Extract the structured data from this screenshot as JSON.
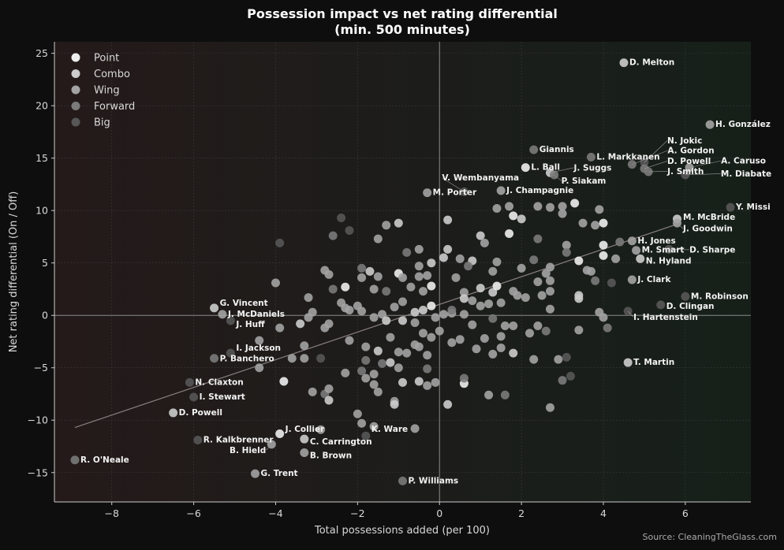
{
  "chart_data": {
    "type": "scatter",
    "title_line1": "Possession impact vs net rating differential",
    "title_line2": "(min. 500 minutes)",
    "xlabel": "Total possessions added (per 100)",
    "ylabel": "Net rating differential (On / Off)",
    "xlim": [
      -9.4,
      7.6
    ],
    "ylim": [
      -17.8,
      26.1
    ],
    "xticks": [
      -8,
      -6,
      -4,
      -2,
      0,
      2,
      4,
      6
    ],
    "yticks": [
      -15,
      -10,
      -5,
      0,
      5,
      10,
      15,
      20,
      25
    ],
    "grid": true,
    "legend_position": "top-left",
    "groups": [
      {
        "name": "Point",
        "color": "#eeeeee"
      },
      {
        "name": "Combo",
        "color": "#cccccc"
      },
      {
        "name": "Wing",
        "color": "#a3a3a3"
      },
      {
        "name": "Forward",
        "color": "#7a7a7a"
      },
      {
        "name": "Big",
        "color": "#575757"
      }
    ],
    "trendline": {
      "x": [
        -8.9,
        5.8
      ],
      "y": [
        -10.7,
        8.7
      ],
      "color": "#8a8080"
    },
    "labeled_points": [
      {
        "name": "D. Melton",
        "x": 4.5,
        "y": 24.1,
        "group": 1
      },
      {
        "name": "H. González",
        "x": 6.6,
        "y": 18.2,
        "group": 2
      },
      {
        "name": "Giannis",
        "x": 2.3,
        "y": 15.8,
        "group": 3
      },
      {
        "name": "L. Markkanen",
        "x": 3.7,
        "y": 15.1,
        "group": 3
      },
      {
        "name": "N. Jokic",
        "x": 5.0,
        "y": 14.6,
        "group": 4
      },
      {
        "name": "A. Gordon",
        "x": 4.7,
        "y": 14.4,
        "group": 3
      },
      {
        "name": "D. Powell",
        "x": 5.0,
        "y": 14.0,
        "group": 3
      },
      {
        "name": "A. Caruso",
        "x": 6.1,
        "y": 14.1,
        "group": 2
      },
      {
        "name": "J. Smith",
        "x": 5.1,
        "y": 13.7,
        "group": 3
      },
      {
        "name": "M. Diabate",
        "x": 6.0,
        "y": 13.4,
        "group": 4
      },
      {
        "name": "L. Ball",
        "x": 2.1,
        "y": 14.1,
        "group": 0
      },
      {
        "name": "J. Suggs",
        "x": 2.7,
        "y": 13.6,
        "group": 1
      },
      {
        "name": "P. Siakam",
        "x": 2.8,
        "y": 13.4,
        "group": 3
      },
      {
        "name": "J. Champagnie",
        "x": 1.5,
        "y": 11.9,
        "group": 2
      },
      {
        "name": "V. Wembanyama",
        "x": 0.6,
        "y": 11.8,
        "group": 4
      },
      {
        "name": "M. Porter",
        "x": -0.3,
        "y": 11.7,
        "group": 2
      },
      {
        "name": "Y. Missi",
        "x": 7.1,
        "y": 10.3,
        "group": 4
      },
      {
        "name": "M. McBride",
        "x": 5.8,
        "y": 9.2,
        "group": 1
      },
      {
        "name": "J. Goodwin",
        "x": 5.8,
        "y": 8.8,
        "group": 2
      },
      {
        "name": "H. Jones",
        "x": 4.7,
        "y": 7.1,
        "group": 2
      },
      {
        "name": "M. Smart",
        "x": 4.8,
        "y": 6.2,
        "group": 2
      },
      {
        "name": "D. Sharpe",
        "x": 5.6,
        "y": 6.3,
        "group": 4
      },
      {
        "name": "N. Hyland",
        "x": 4.9,
        "y": 5.4,
        "group": 1
      },
      {
        "name": "J. Clark",
        "x": 4.7,
        "y": 3.4,
        "group": 2
      },
      {
        "name": "M. Robinson",
        "x": 6.0,
        "y": 1.8,
        "group": 4
      },
      {
        "name": "D. Clingan",
        "x": 5.4,
        "y": 1.0,
        "group": 4
      },
      {
        "name": "I. Hartenstein",
        "x": 4.6,
        "y": 0.4,
        "group": 4
      },
      {
        "name": "T. Martin",
        "x": 4.6,
        "y": -4.5,
        "group": 1
      },
      {
        "name": "G. Vincent",
        "x": -5.5,
        "y": 0.7,
        "group": 1
      },
      {
        "name": "J. McDaniels",
        "x": -5.3,
        "y": 0.1,
        "group": 2
      },
      {
        "name": "J. Huff",
        "x": -5.1,
        "y": -0.5,
        "group": 4
      },
      {
        "name": "I. Jackson",
        "x": -5.1,
        "y": -3.6,
        "group": 4
      },
      {
        "name": "P. Banchero",
        "x": -5.5,
        "y": -4.1,
        "group": 3
      },
      {
        "name": "N. Claxton",
        "x": -6.1,
        "y": -6.4,
        "group": 4
      },
      {
        "name": "I. Stewart",
        "x": -6.0,
        "y": -7.8,
        "group": 4
      },
      {
        "name": "D. Powell",
        "x": -6.5,
        "y": -9.3,
        "group": 1
      },
      {
        "name": "R. Kalkbrenner",
        "x": -5.9,
        "y": -11.9,
        "group": 4
      },
      {
        "name": "R. O'Neale",
        "x": -8.9,
        "y": -13.8,
        "group": 3
      },
      {
        "name": "G. Trent",
        "x": -4.5,
        "y": -15.1,
        "group": 2
      },
      {
        "name": "J. Collier",
        "x": -3.9,
        "y": -11.3,
        "group": 0
      },
      {
        "name": "B. Hield",
        "x": -4.1,
        "y": -12.3,
        "group": 2
      },
      {
        "name": "C. Carrington",
        "x": -3.3,
        "y": -11.8,
        "group": 1
      },
      {
        "name": "B. Brown",
        "x": -3.3,
        "y": -13.1,
        "group": 2
      },
      {
        "name": "K. Ware",
        "x": -1.8,
        "y": -11.5,
        "group": 4
      },
      {
        "name": "P. Williams",
        "x": -0.9,
        "y": -15.8,
        "group": 3
      }
    ],
    "other_points": [
      [
        -3.9,
        6.9,
        4
      ],
      [
        -4.0,
        3.1,
        2
      ],
      [
        -2.4,
        9.3,
        4
      ],
      [
        -2.2,
        8.1,
        4
      ],
      [
        -2.6,
        7.6,
        3
      ],
      [
        -1.3,
        8.6,
        2
      ],
      [
        -1.0,
        8.8,
        1
      ],
      [
        -1.5,
        7.3,
        2
      ],
      [
        -0.5,
        6.3,
        2
      ],
      [
        -0.8,
        6.0,
        3
      ],
      [
        -1.9,
        4.5,
        3
      ],
      [
        -1.7,
        4.2,
        1
      ],
      [
        -2.8,
        4.3,
        2
      ],
      [
        -2.7,
        3.9,
        2
      ],
      [
        -1.5,
        3.7,
        2
      ],
      [
        -1.0,
        4.0,
        0
      ],
      [
        -0.5,
        4.7,
        2
      ],
      [
        -0.2,
        5.0,
        1
      ],
      [
        0.1,
        5.5,
        1
      ],
      [
        0.2,
        6.3,
        1
      ],
      [
        0.5,
        5.4,
        2
      ],
      [
        0.8,
        5.2,
        1
      ],
      [
        1.0,
        7.6,
        1
      ],
      [
        1.1,
        6.9,
        2
      ],
      [
        1.7,
        7.8,
        0
      ],
      [
        2.0,
        9.2,
        1
      ],
      [
        1.8,
        9.5,
        0
      ],
      [
        1.7,
        10.4,
        2
      ],
      [
        2.4,
        10.4,
        2
      ],
      [
        2.7,
        10.3,
        2
      ],
      [
        3.0,
        10.4,
        2
      ],
      [
        3.3,
        10.7,
        0
      ],
      [
        3.9,
        10.1,
        2
      ],
      [
        3.0,
        9.7,
        2
      ],
      [
        3.5,
        8.8,
        2
      ],
      [
        3.8,
        8.6,
        2
      ],
      [
        4.0,
        8.8,
        0
      ],
      [
        1.4,
        10.2,
        2
      ],
      [
        0.2,
        9.1,
        1
      ],
      [
        2.4,
        7.3,
        3
      ],
      [
        3.1,
        6.7,
        2
      ],
      [
        3.1,
        6.0,
        3
      ],
      [
        4.0,
        6.7,
        0
      ],
      [
        4.4,
        7.0,
        3
      ],
      [
        4.0,
        5.7,
        0
      ],
      [
        3.4,
        5.2,
        0
      ],
      [
        3.6,
        4.3,
        2
      ],
      [
        3.7,
        4.2,
        2
      ],
      [
        4.3,
        5.4,
        2
      ],
      [
        2.7,
        4.6,
        2
      ],
      [
        2.3,
        5.3,
        3
      ],
      [
        2.0,
        4.5,
        2
      ],
      [
        1.4,
        5.1,
        2
      ],
      [
        1.3,
        4.2,
        2
      ],
      [
        2.6,
        4.0,
        2
      ],
      [
        2.7,
        3.3,
        2
      ],
      [
        2.4,
        3.2,
        2
      ],
      [
        3.8,
        3.3,
        3
      ],
      [
        4.2,
        3.1,
        4
      ],
      [
        3.4,
        1.6,
        1
      ],
      [
        3.4,
        1.9,
        1
      ],
      [
        2.7,
        2.3,
        2
      ],
      [
        2.5,
        1.9,
        2
      ],
      [
        2.1,
        1.7,
        2
      ],
      [
        1.8,
        2.3,
        2
      ],
      [
        1.5,
        1.2,
        2
      ],
      [
        1.3,
        2.2,
        1
      ],
      [
        1.0,
        2.6,
        1
      ],
      [
        0.6,
        2.2,
        2
      ],
      [
        0.4,
        3.6,
        2
      ],
      [
        0.6,
        1.6,
        1
      ],
      [
        0.8,
        1.4,
        2
      ],
      [
        1.2,
        1.1,
        2
      ],
      [
        1.9,
        1.9,
        2
      ],
      [
        1.4,
        2.8,
        0
      ],
      [
        1.0,
        0.9,
        2
      ],
      [
        0.6,
        0.1,
        2
      ],
      [
        0.3,
        0.2,
        2
      ],
      [
        0.1,
        0.1,
        2
      ],
      [
        -0.2,
        0.9,
        0
      ],
      [
        -0.4,
        0.5,
        1
      ],
      [
        -0.6,
        0.3,
        1
      ],
      [
        -0.2,
        2.8,
        0
      ],
      [
        -0.4,
        2.3,
        2
      ],
      [
        -0.7,
        2.7,
        2
      ],
      [
        -0.9,
        3.6,
        2
      ],
      [
        -1.3,
        2.3,
        3
      ],
      [
        -1.6,
        2.5,
        2
      ],
      [
        -1.9,
        3.6,
        2
      ],
      [
        -2.3,
        2.7,
        0
      ],
      [
        -2.6,
        2.5,
        3
      ],
      [
        -2.4,
        1.2,
        2
      ],
      [
        -2.3,
        0.7,
        2
      ],
      [
        -2.0,
        0.9,
        2
      ],
      [
        -1.6,
        -0.2,
        2
      ],
      [
        -1.4,
        0.1,
        2
      ],
      [
        -1.1,
        0.8,
        2
      ],
      [
        -0.9,
        1.3,
        2
      ],
      [
        -2.7,
        -0.8,
        2
      ],
      [
        -2.8,
        -1.2,
        2
      ],
      [
        -3.2,
        1.7,
        2
      ],
      [
        -3.1,
        0.3,
        2
      ],
      [
        -3.2,
        -0.2,
        2
      ],
      [
        -3.4,
        -0.8,
        1
      ],
      [
        -3.9,
        -1.2,
        2
      ],
      [
        -3.3,
        -2.9,
        2
      ],
      [
        -3.3,
        -4.1,
        2
      ],
      [
        -3.6,
        -4.1,
        2
      ],
      [
        -3.8,
        -6.3,
        0
      ],
      [
        -4.4,
        -2.4,
        2
      ],
      [
        -4.4,
        -5.0,
        2
      ],
      [
        -2.9,
        -4.1,
        4
      ],
      [
        -3.1,
        -7.3,
        2
      ],
      [
        -2.8,
        -7.5,
        3
      ],
      [
        -2.7,
        -7.0,
        2
      ],
      [
        -2.7,
        -8.1,
        1
      ],
      [
        -2.2,
        -2.4,
        2
      ],
      [
        -2.3,
        -5.5,
        2
      ],
      [
        -1.8,
        -3.0,
        2
      ],
      [
        -1.8,
        -4.3,
        3
      ],
      [
        -1.6,
        -5.6,
        2
      ],
      [
        -1.5,
        -3.4,
        1
      ],
      [
        -1.4,
        -4.6,
        3
      ],
      [
        -1.2,
        -2.1,
        2
      ],
      [
        -1.2,
        -4.5,
        1
      ],
      [
        -1.0,
        -5.0,
        2
      ],
      [
        -0.9,
        -6.4,
        1
      ],
      [
        -1.8,
        -6.0,
        2
      ],
      [
        -1.6,
        -6.6,
        2
      ],
      [
        -1.5,
        -7.3,
        2
      ],
      [
        -1.1,
        -8.2,
        2
      ],
      [
        -1.1,
        -8.5,
        1
      ],
      [
        -0.5,
        -6.3,
        1
      ],
      [
        -0.3,
        -6.7,
        2
      ],
      [
        -0.1,
        -6.4,
        2
      ],
      [
        -0.8,
        -3.6,
        2
      ],
      [
        -0.6,
        -2.8,
        2
      ],
      [
        -0.4,
        -1.7,
        2
      ],
      [
        -0.2,
        -2.1,
        2
      ],
      [
        0.0,
        -1.5,
        2
      ],
      [
        -0.6,
        -0.7,
        2
      ],
      [
        -0.9,
        -0.5,
        1
      ],
      [
        -1.3,
        -0.5,
        1
      ],
      [
        -0.1,
        -0.2,
        2
      ],
      [
        0.3,
        -2.6,
        2
      ],
      [
        0.5,
        -2.3,
        2
      ],
      [
        0.8,
        -0.9,
        2
      ],
      [
        0.9,
        -3.2,
        2
      ],
      [
        1.1,
        -2.2,
        2
      ],
      [
        1.3,
        -3.7,
        2
      ],
      [
        1.5,
        -3.1,
        2
      ],
      [
        1.5,
        -2.0,
        2
      ],
      [
        1.6,
        -1.0,
        2
      ],
      [
        1.8,
        -3.6,
        1
      ],
      [
        1.8,
        -1.0,
        2
      ],
      [
        0.6,
        -6.5,
        0
      ],
      [
        0.6,
        -6.0,
        3
      ],
      [
        0.2,
        -8.5,
        1
      ],
      [
        1.2,
        -7.6,
        2
      ],
      [
        1.6,
        -7.6,
        3
      ],
      [
        2.3,
        -4.2,
        2
      ],
      [
        2.4,
        -1.0,
        2
      ],
      [
        2.6,
        -1.5,
        3
      ],
      [
        2.2,
        -1.7,
        2
      ],
      [
        2.9,
        -4.2,
        2
      ],
      [
        3.1,
        -4.0,
        4
      ],
      [
        3.2,
        -5.8,
        4
      ],
      [
        3.0,
        -6.2,
        3
      ],
      [
        2.7,
        -8.8,
        2
      ],
      [
        3.4,
        -1.4,
        2
      ],
      [
        4.0,
        -0.2,
        2
      ],
      [
        4.1,
        -1.2,
        3
      ],
      [
        3.9,
        0.3,
        2
      ],
      [
        2.7,
        0.6,
        2
      ],
      [
        -2.0,
        -9.4,
        2
      ],
      [
        -1.9,
        -10.3,
        2
      ],
      [
        -1.6,
        -10.6,
        2
      ],
      [
        -2.9,
        -10.9,
        2
      ],
      [
        -0.6,
        -10.8,
        2
      ],
      [
        -1.9,
        0.4,
        2
      ],
      [
        -2.2,
        0.5,
        2
      ],
      [
        -0.3,
        3.8,
        2
      ],
      [
        -0.5,
        3.7,
        2
      ],
      [
        -0.3,
        -3.8,
        2
      ],
      [
        -0.5,
        -3.0,
        2
      ],
      [
        -1.0,
        -3.5,
        2
      ],
      [
        -1.9,
        -5.3,
        3
      ],
      [
        -0.3,
        -5.1,
        3
      ],
      [
        0.7,
        4.7,
        3
      ],
      [
        1.3,
        -0.3,
        3
      ],
      [
        0.3,
        0.5,
        3
      ]
    ]
  },
  "source": "Source: CleaningTheGlass.com"
}
